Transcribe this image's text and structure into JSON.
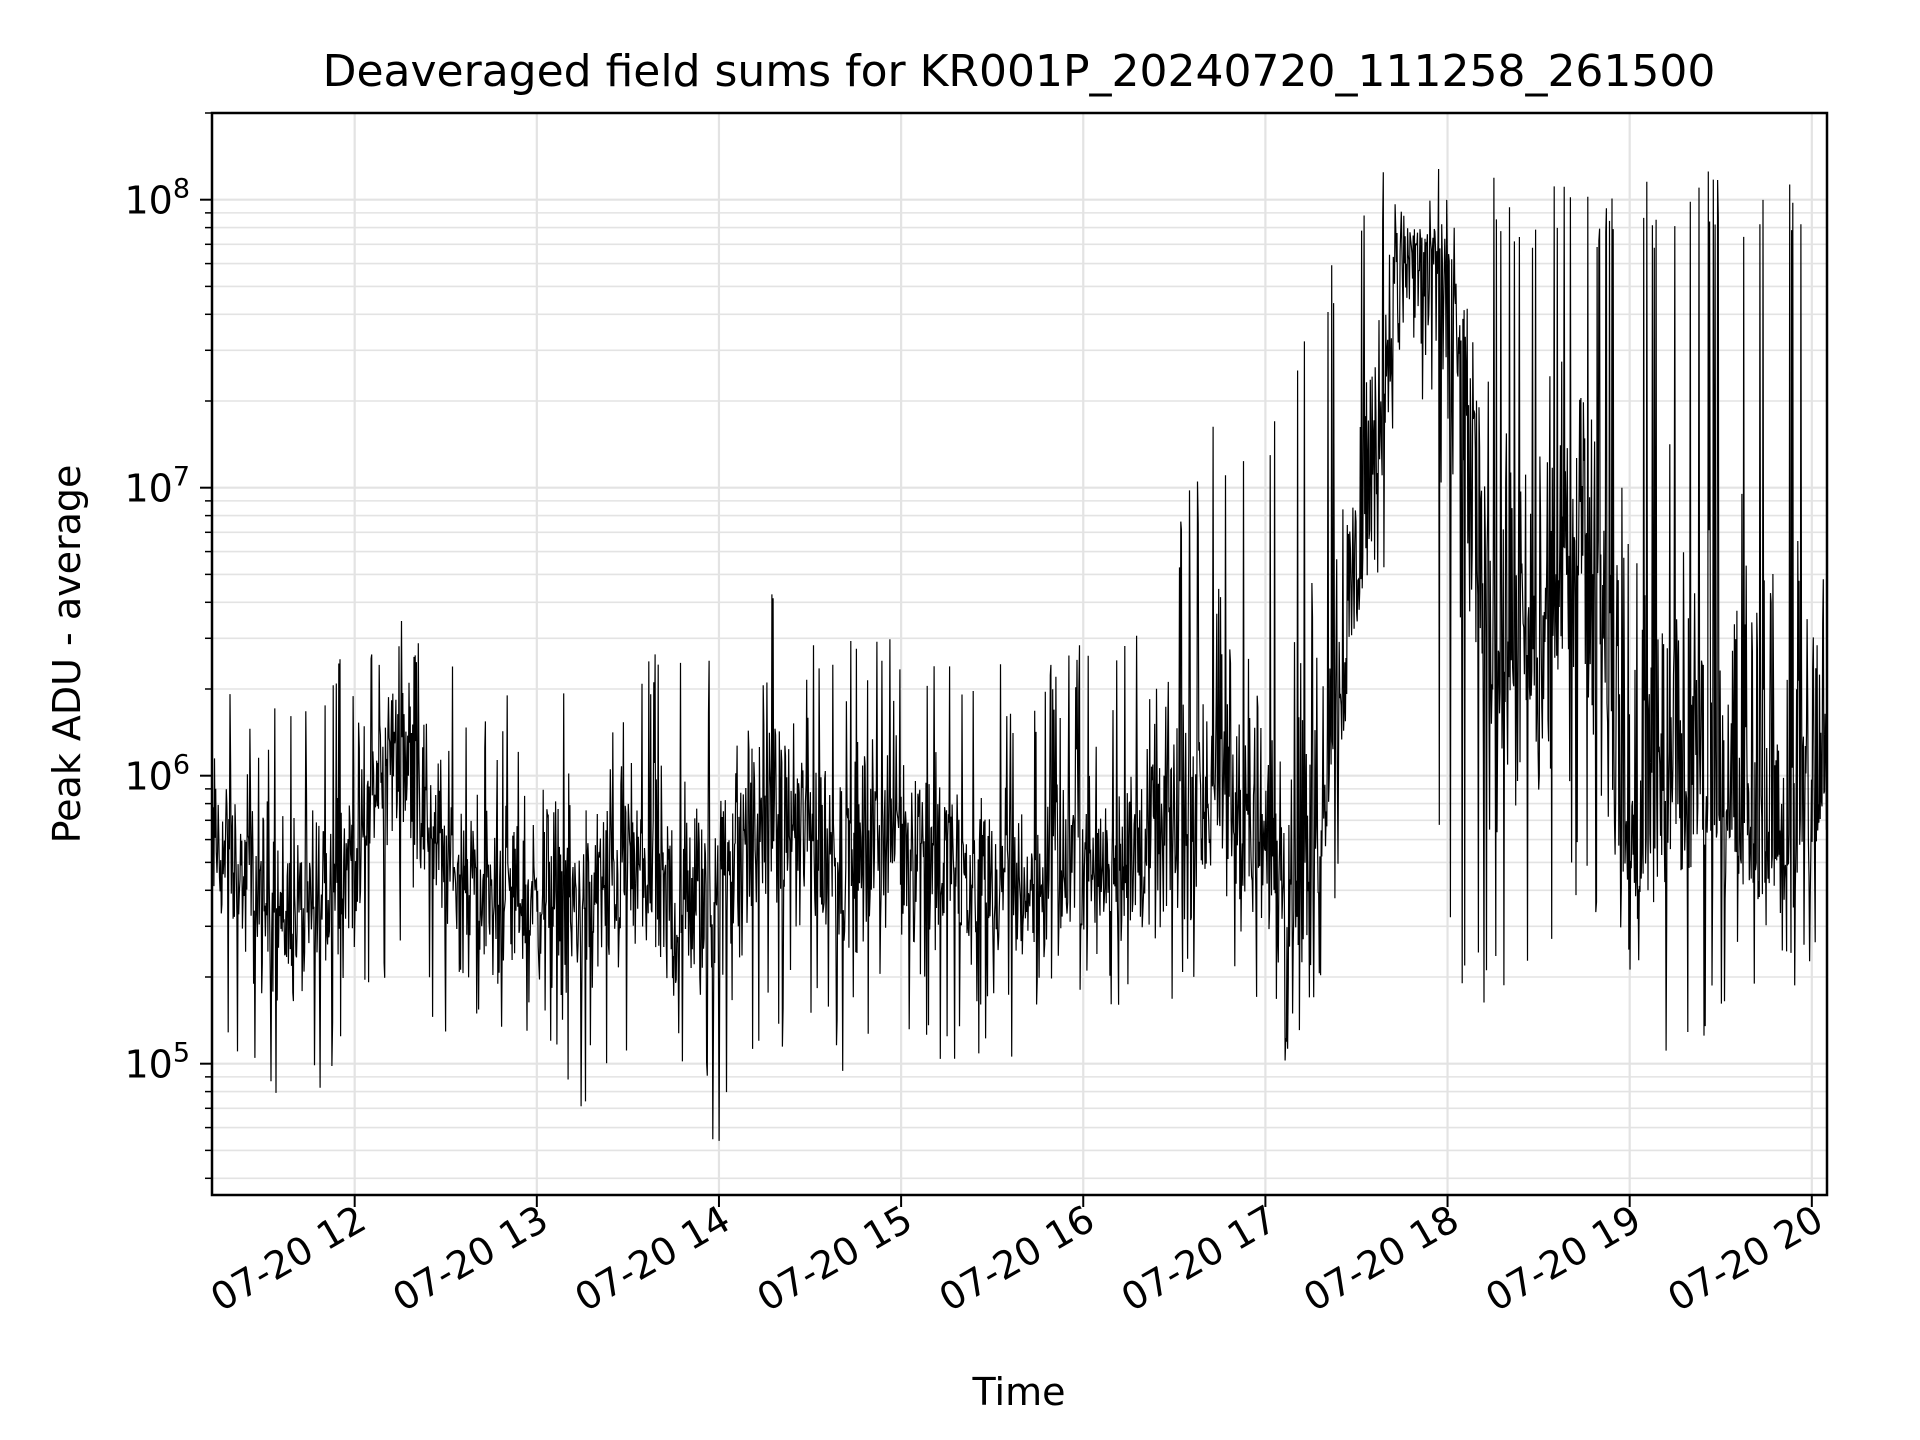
{
  "chart_data": {
    "type": "line",
    "title": "Deaveraged field sums for KR001P_20240720_111258_261500",
    "xlabel": "Time",
    "ylabel": "Peak ADU - average",
    "x_axis": {
      "type": "time",
      "range": [
        "2024-07-20 11:13",
        "2024-07-20 20:05"
      ],
      "ticks": [
        "07-20 12",
        "07-20 13",
        "07-20 14",
        "07-20 15",
        "07-20 16",
        "07-20 17",
        "07-20 18",
        "07-20 19",
        "07-20 20"
      ]
    },
    "y_axis": {
      "scale": "log",
      "range": [
        35000,
        200000000
      ],
      "ticks": [
        {
          "base": "10",
          "exp": "5"
        },
        {
          "base": "10",
          "exp": "6"
        },
        {
          "base": "10",
          "exp": "7"
        },
        {
          "base": "10",
          "exp": "8"
        }
      ]
    },
    "grid": true,
    "line_color": "#000000",
    "series": [
      {
        "x": [
          "11:13",
          "11:30",
          "11:45",
          "12:00",
          "12:15",
          "12:30",
          "12:45",
          "13:00",
          "13:15",
          "13:30",
          "13:45",
          "14:00",
          "14:15",
          "14:30",
          "14:45",
          "15:00",
          "15:15",
          "15:30",
          "15:45",
          "16:00",
          "16:15",
          "16:30",
          "16:45",
          "17:00",
          "17:15",
          "17:30",
          "17:45",
          "18:00",
          "18:15",
          "18:30",
          "18:45",
          "19:00",
          "19:15",
          "19:30",
          "19:45",
          "20:00",
          "20:05"
        ],
        "y": [
          600000,
          350000,
          300000,
          550000,
          1500000,
          500000,
          350000,
          400000,
          350000,
          500000,
          300000,
          400000,
          800000,
          600000,
          500000,
          700000,
          500000,
          400000,
          400000,
          500000,
          500000,
          600000,
          900000,
          500000,
          500000,
          5000000,
          70000000,
          60000000,
          3000000,
          2000000,
          10000000,
          500000,
          1000000,
          800000,
          600000,
          700000,
          1000000
        ],
        "high": [
          2500000,
          2000000,
          2000000,
          3000000,
          5000000,
          2500000,
          2000000,
          2000000,
          2000000,
          2500000,
          3500000,
          2500000,
          5500000,
          3000000,
          3000000,
          3500000,
          2500000,
          2500000,
          2500000,
          3000000,
          3000000,
          8000000,
          20000000,
          15000000,
          40000000,
          120000000,
          130000000,
          130000000,
          120000000,
          120000000,
          120000000,
          120000000,
          120000000,
          130000000,
          120000000,
          120000000,
          120000000
        ],
        "low": [
          130000,
          80000,
          70000,
          100000,
          250000,
          100000,
          100000,
          100000,
          70000,
          90000,
          90000,
          50000,
          100000,
          110000,
          80000,
          90000,
          100000,
          100000,
          110000,
          120000,
          120000,
          150000,
          150000,
          95000,
          100000,
          1000000,
          10000000,
          200000,
          150000,
          200000,
          400000,
          80000,
          80000,
          150000,
          150000,
          150000,
          200000
        ]
      }
    ]
  }
}
